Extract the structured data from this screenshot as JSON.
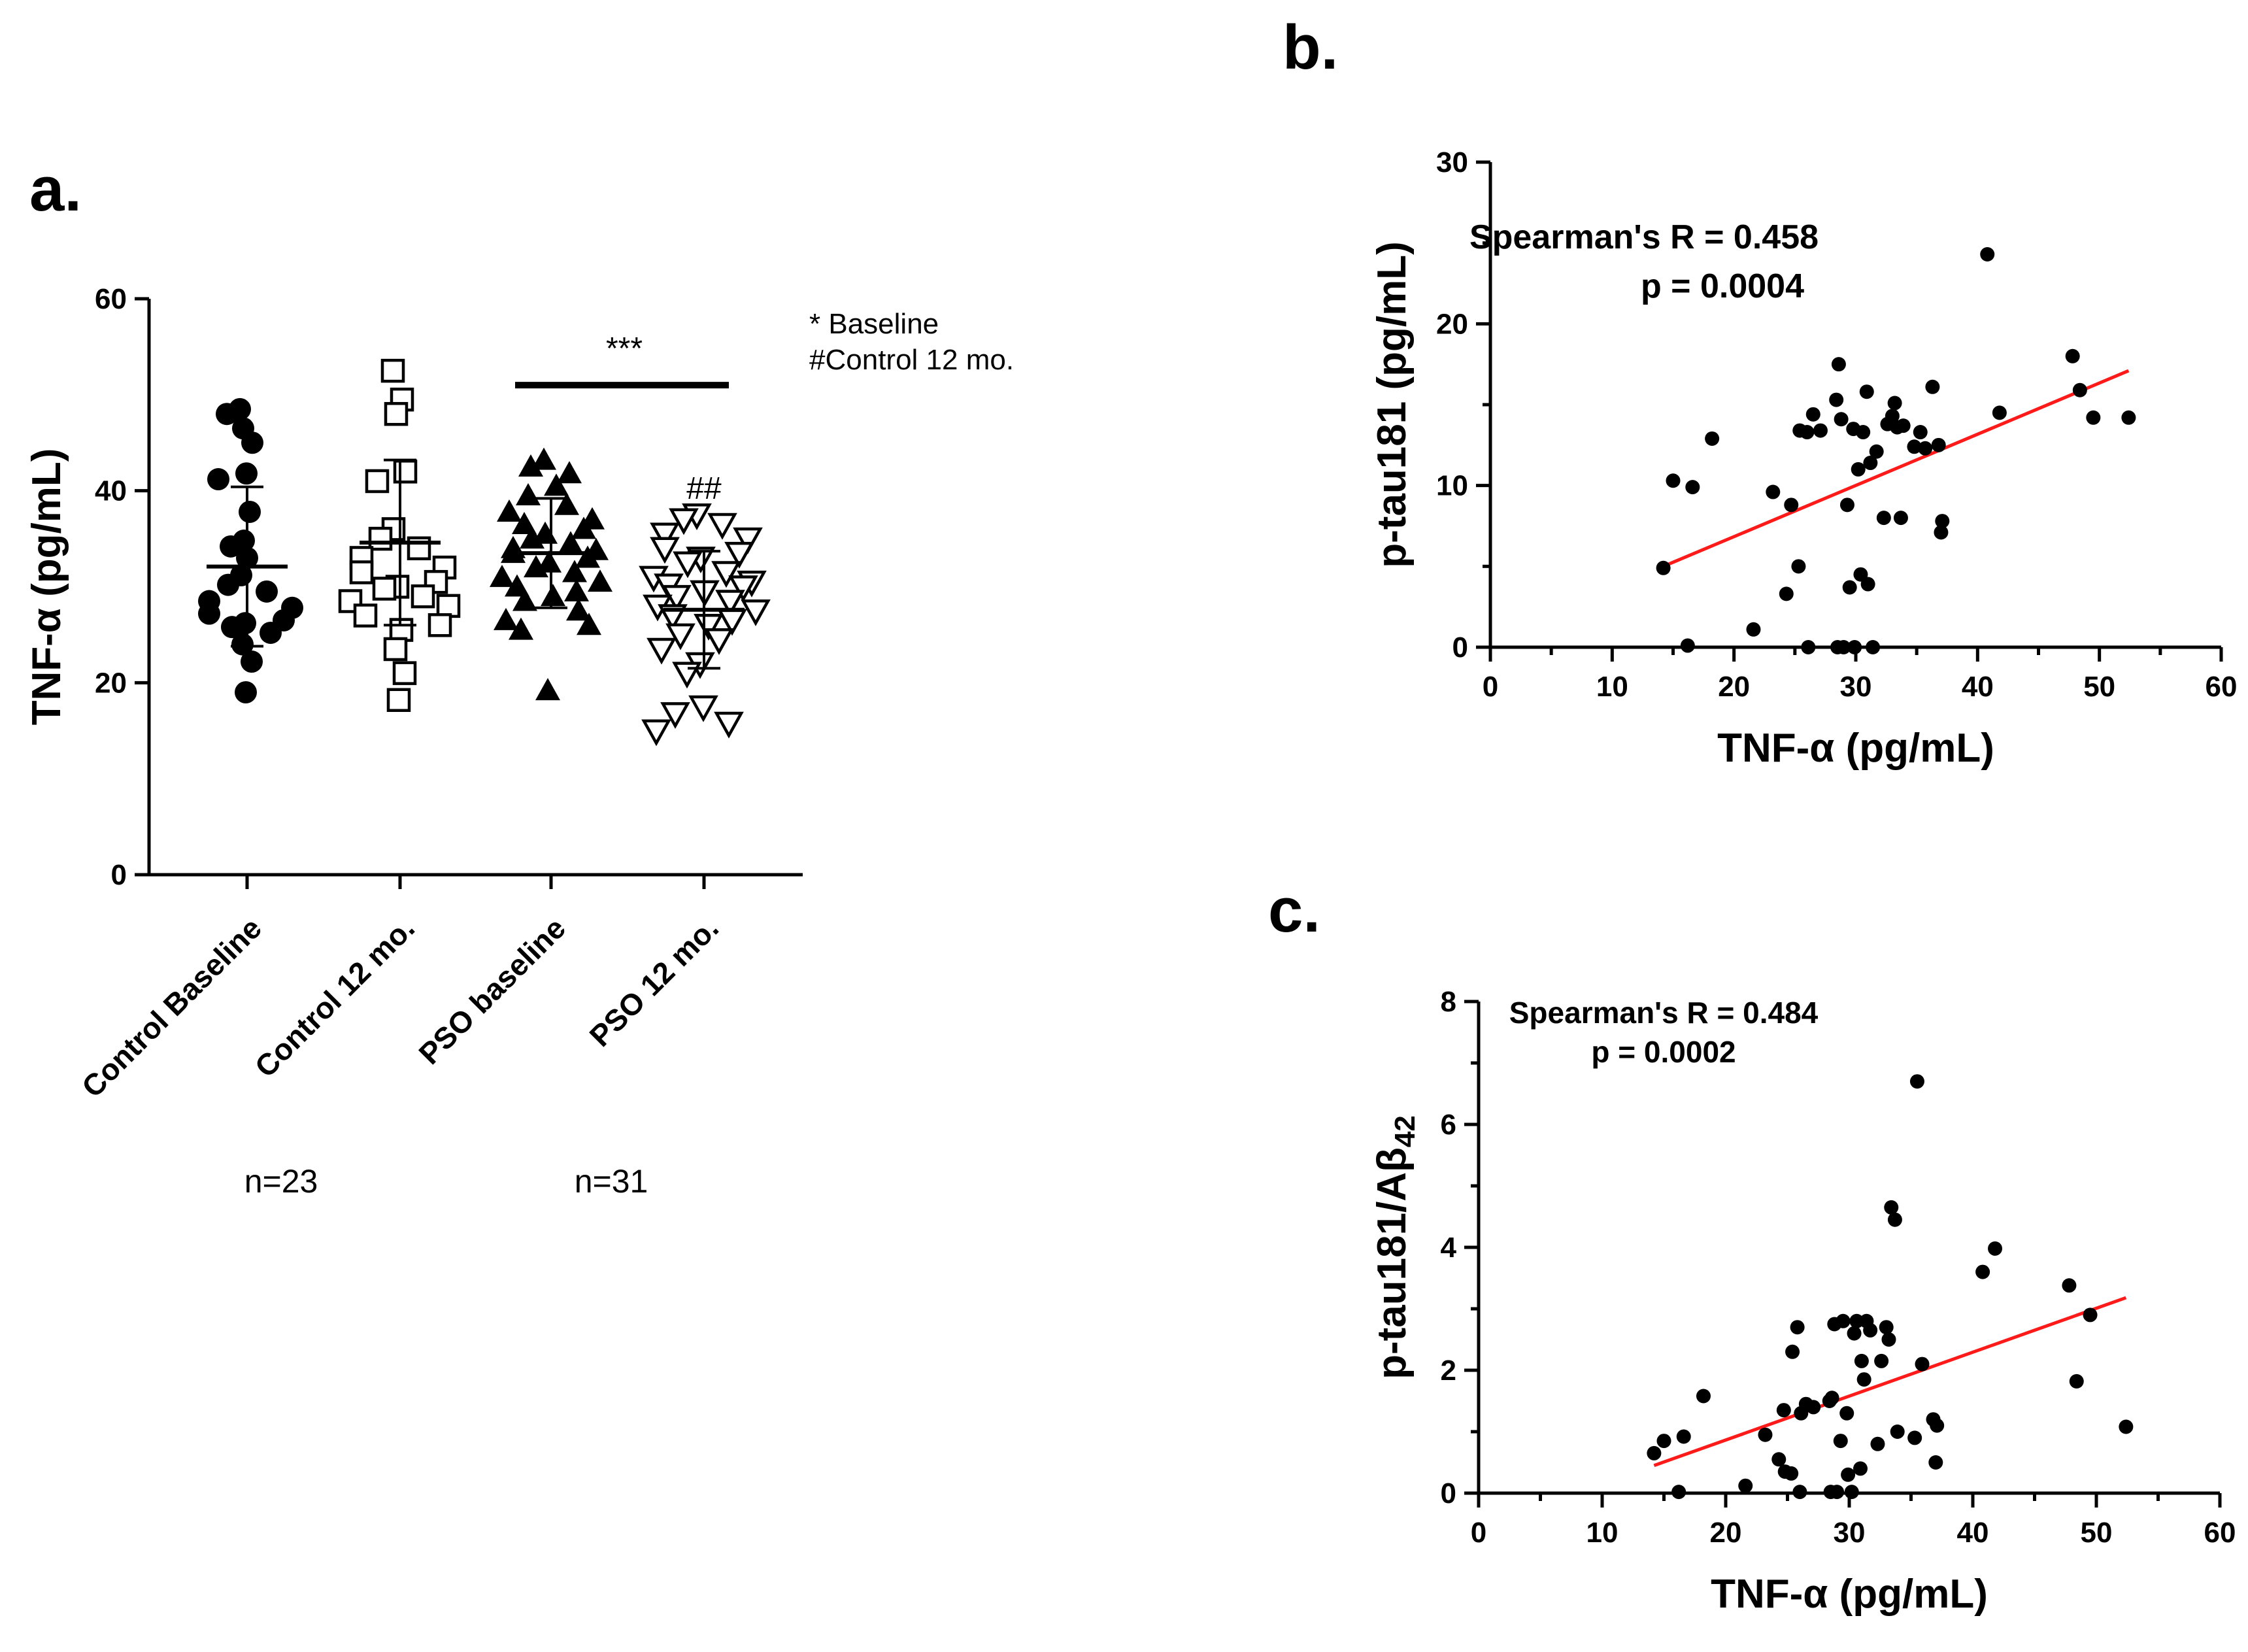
{
  "panel_labels": {
    "a": "a.",
    "b": "b.",
    "c": "c."
  },
  "panel_a": {
    "significance": "***",
    "marker_12mo": "##",
    "legend_line1": "* Baseline",
    "legend_line2": "#Control 12 mo.",
    "n_control": "n=23",
    "n_pso": "n=31"
  },
  "panel_b": {
    "stat_line1": "Spearman's R = 0.458",
    "stat_line2": "p = 0.0004"
  },
  "panel_c": {
    "stat_line1": "Spearman's R = 0.484",
    "stat_line2": "p = 0.0002",
    "ylabel_main": "p-tau181/Aβ",
    "ylabel_sub": "42"
  },
  "chart_data": [
    {
      "id": "a",
      "type": "scatter",
      "title": "",
      "xlabel": "",
      "ylabel": "TNF-α (pg/mL)",
      "ylim": [
        0,
        60
      ],
      "yticks": [
        0,
        20,
        40,
        60
      ],
      "categories": [
        "Control Baseline",
        "Control 12 mo.",
        "PSO baseline",
        "PSO 12 mo."
      ],
      "series": [
        {
          "name": "Control Baseline",
          "marker": "circle-filled",
          "mean": 32.1,
          "sd": 8.3,
          "values": [
            48.5,
            48.0,
            46.5,
            45.0,
            41.8,
            41.2,
            37.8,
            34.8,
            34.2,
            33.0,
            31.2,
            30.2,
            29.5,
            28.5,
            27.8,
            27.2,
            26.5,
            26.2,
            25.8,
            25.2,
            24.0,
            22.2,
            19.0
          ]
        },
        {
          "name": "Control 12 mo.",
          "marker": "square-open",
          "mean": 34.6,
          "sd": 8.6,
          "values": [
            52.5,
            49.5,
            48.0,
            42.0,
            41.0,
            36.0,
            35.0,
            34.0,
            33.0,
            32.0,
            31.5,
            30.5,
            30.0,
            29.8,
            29.0,
            28.5,
            28.0,
            27.0,
            26.0,
            25.5,
            23.5,
            21.0,
            18.2
          ]
        },
        {
          "name": "PSO baseline",
          "marker": "triangle-filled",
          "mean": 33.5,
          "sd": 5.7,
          "values": [
            43.2,
            42.5,
            41.8,
            40.5,
            39.5,
            38.5,
            37.8,
            37.0,
            36.5,
            36.0,
            35.5,
            35.0,
            34.5,
            34.0,
            33.8,
            33.5,
            33.0,
            32.5,
            32.0,
            31.5,
            31.0,
            30.5,
            30.0,
            29.5,
            29.0,
            28.5,
            27.5,
            26.5,
            26.0,
            25.5,
            19.2
          ]
        },
        {
          "name": "PSO 12 mo.",
          "marker": "triangle-down-open",
          "mean": 27.6,
          "sd": 6.1,
          "values": [
            37.5,
            37.0,
            36.5,
            35.5,
            35.0,
            34.0,
            33.5,
            33.0,
            32.5,
            31.5,
            31.0,
            30.5,
            30.2,
            30.0,
            29.5,
            29.0,
            28.5,
            28.0,
            27.5,
            27.0,
            26.5,
            26.0,
            25.0,
            24.5,
            23.5,
            22.0,
            21.0,
            17.5,
            16.8,
            15.8,
            15.0
          ]
        }
      ],
      "significance_bar": {
        "from": "PSO baseline",
        "to": "PSO 12 mo.",
        "y": 51,
        "label": "***"
      }
    },
    {
      "id": "b",
      "type": "scatter",
      "title": "",
      "xlabel": "TNF-α (pg/mL)",
      "ylabel": "p-tau181 (pg/mL)",
      "xlim": [
        0,
        60
      ],
      "ylim": [
        0,
        30
      ],
      "xticks": [
        0,
        10,
        20,
        30,
        40,
        50,
        60
      ],
      "yticks": [
        0,
        10,
        20,
        30
      ],
      "points": [
        [
          14.2,
          4.9
        ],
        [
          15.0,
          10.3
        ],
        [
          16.2,
          0.1
        ],
        [
          16.6,
          9.9
        ],
        [
          18.2,
          12.9
        ],
        [
          21.6,
          1.1
        ],
        [
          23.2,
          9.6
        ],
        [
          24.3,
          3.3
        ],
        [
          24.7,
          8.8
        ],
        [
          25.3,
          5.0
        ],
        [
          25.4,
          13.4
        ],
        [
          26.0,
          13.3
        ],
        [
          26.1,
          0.0
        ],
        [
          26.5,
          14.4
        ],
        [
          27.1,
          13.4
        ],
        [
          28.4,
          15.3
        ],
        [
          28.6,
          17.5
        ],
        [
          28.8,
          14.1
        ],
        [
          28.5,
          0.0
        ],
        [
          29.0,
          0.0
        ],
        [
          29.3,
          8.8
        ],
        [
          29.5,
          3.7
        ],
        [
          29.8,
          13.5
        ],
        [
          29.9,
          0.0
        ],
        [
          30.2,
          11.0
        ],
        [
          30.4,
          4.5
        ],
        [
          30.6,
          13.3
        ],
        [
          30.9,
          15.8
        ],
        [
          31.0,
          3.9
        ],
        [
          31.2,
          11.4
        ],
        [
          31.4,
          0.0
        ],
        [
          31.7,
          12.1
        ],
        [
          32.3,
          8.0
        ],
        [
          32.6,
          13.8
        ],
        [
          33.0,
          14.3
        ],
        [
          33.2,
          15.1
        ],
        [
          33.4,
          13.6
        ],
        [
          33.7,
          8.0
        ],
        [
          33.9,
          13.7
        ],
        [
          34.8,
          12.4
        ],
        [
          35.3,
          13.3
        ],
        [
          35.7,
          12.3
        ],
        [
          36.3,
          16.1
        ],
        [
          36.8,
          12.5
        ],
        [
          37.0,
          7.1
        ],
        [
          37.1,
          7.8
        ],
        [
          40.8,
          24.3
        ],
        [
          41.8,
          14.5
        ],
        [
          47.8,
          18.0
        ],
        [
          48.4,
          15.9
        ],
        [
          49.5,
          14.2
        ],
        [
          52.4,
          14.2
        ]
      ],
      "regression": {
        "x1": 14.2,
        "y1": 5.0,
        "x2": 52.4,
        "y2": 17.1
      }
    },
    {
      "id": "c",
      "type": "scatter",
      "title": "",
      "xlabel": "TNF-α (pg/mL)",
      "ylabel": "p-tau181/Aβ42",
      "xlim": [
        0,
        60
      ],
      "ylim": [
        0,
        8
      ],
      "xticks": [
        0,
        10,
        20,
        30,
        40,
        50,
        60
      ],
      "yticks": [
        0,
        2,
        4,
        6,
        8
      ],
      "points": [
        [
          14.2,
          0.65
        ],
        [
          15.0,
          0.85
        ],
        [
          16.2,
          0.02
        ],
        [
          16.6,
          0.92
        ],
        [
          18.2,
          1.58
        ],
        [
          21.6,
          0.12
        ],
        [
          23.2,
          0.95
        ],
        [
          24.3,
          0.55
        ],
        [
          24.7,
          1.35
        ],
        [
          24.8,
          0.35
        ],
        [
          25.3,
          0.32
        ],
        [
          25.4,
          2.3
        ],
        [
          25.8,
          2.7
        ],
        [
          26.0,
          0.02
        ],
        [
          26.1,
          1.3
        ],
        [
          26.5,
          1.45
        ],
        [
          27.1,
          1.4
        ],
        [
          28.4,
          1.5
        ],
        [
          28.6,
          1.55
        ],
        [
          28.8,
          2.75
        ],
        [
          28.5,
          0.02
        ],
        [
          29.0,
          0.02
        ],
        [
          29.3,
          0.85
        ],
        [
          29.5,
          2.8
        ],
        [
          29.8,
          1.3
        ],
        [
          29.9,
          0.3
        ],
        [
          30.2,
          0.02
        ],
        [
          30.4,
          2.6
        ],
        [
          30.6,
          2.8
        ],
        [
          30.9,
          0.4
        ],
        [
          31.0,
          2.15
        ],
        [
          31.2,
          1.85
        ],
        [
          31.4,
          2.8
        ],
        [
          31.7,
          2.65
        ],
        [
          32.3,
          0.8
        ],
        [
          32.6,
          2.15
        ],
        [
          33.0,
          2.7
        ],
        [
          33.2,
          2.5
        ],
        [
          33.4,
          4.65
        ],
        [
          33.7,
          4.45
        ],
        [
          33.9,
          1.0
        ],
        [
          35.3,
          0.9
        ],
        [
          35.5,
          6.7
        ],
        [
          35.9,
          2.1
        ],
        [
          36.8,
          1.2
        ],
        [
          37.0,
          0.5
        ],
        [
          37.1,
          1.1
        ],
        [
          40.8,
          3.6
        ],
        [
          41.8,
          3.98
        ],
        [
          47.8,
          3.38
        ],
        [
          48.4,
          1.82
        ],
        [
          49.5,
          2.9
        ],
        [
          52.4,
          1.08
        ]
      ],
      "regression": {
        "x1": 14.2,
        "y1": 0.45,
        "x2": 52.4,
        "y2": 3.18
      }
    }
  ]
}
